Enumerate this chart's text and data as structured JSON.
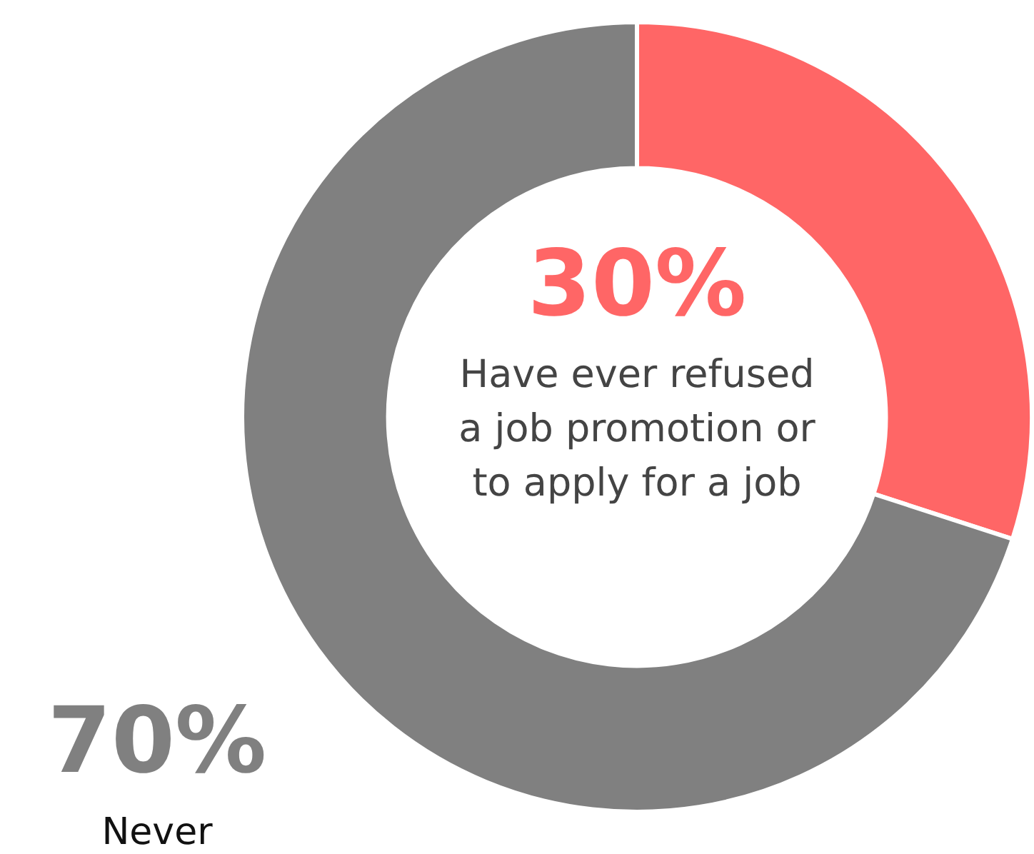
{
  "chart_data": {
    "type": "donut",
    "categories": [
      "Have ever refused a job promotion or to apply for a job",
      "Never"
    ],
    "values": [
      30,
      70
    ],
    "colors": [
      "#ff6666",
      "#808080"
    ],
    "value_labels": [
      "30%",
      "70%"
    ],
    "legend": false
  }
}
